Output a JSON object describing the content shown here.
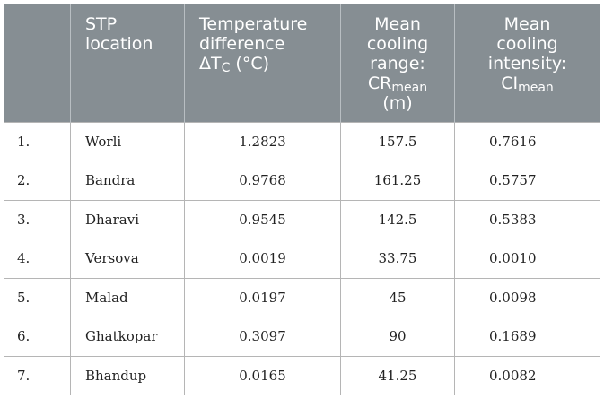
{
  "table": {
    "headers": {
      "col0": "",
      "col1_line1": "STP",
      "col1_line2": "location",
      "col2_line1": "Temperature",
      "col2_line2": "difference",
      "col2_line3_pre": "ΔT",
      "col2_line3_sub": "C",
      "col2_line3_post": " (°C)",
      "col3_line1": "Mean",
      "col3_line2": "cooling",
      "col3_line3": "range:",
      "col3_line4_pre": "CR",
      "col3_line4_sub": "mean",
      "col3_line5": "(m)",
      "col4_line1": "Mean",
      "col4_line2": "cooling",
      "col4_line3": "intensity:",
      "col4_line4_pre": "CI",
      "col4_line4_sub": "mean"
    },
    "rows": [
      {
        "num": "1.",
        "location": "Worli",
        "temp_diff": "1.2823",
        "cooling_range": "157.5",
        "cooling_intensity": "0.7616"
      },
      {
        "num": "2.",
        "location": "Bandra",
        "temp_diff": "0.9768",
        "cooling_range": "161.25",
        "cooling_intensity": "0.5757"
      },
      {
        "num": "3.",
        "location": "Dharavi",
        "temp_diff": "0.9545",
        "cooling_range": "142.5",
        "cooling_intensity": "0.5383"
      },
      {
        "num": "4.",
        "location": "Versova",
        "temp_diff": "0.0019",
        "cooling_range": "33.75",
        "cooling_intensity": "0.0010"
      },
      {
        "num": "5.",
        "location": "Malad",
        "temp_diff": "0.0197",
        "cooling_range": "45",
        "cooling_intensity": "0.0098"
      },
      {
        "num": "6.",
        "location": "Ghatkopar",
        "temp_diff": "0.3097",
        "cooling_range": "90",
        "cooling_intensity": "0.1689"
      },
      {
        "num": "7.",
        "location": "Bhandup",
        "temp_diff": "0.0165",
        "cooling_range": "41.25",
        "cooling_intensity": "0.0082"
      }
    ]
  },
  "colors": {
    "header_bg": "#868e93",
    "header_text": "#ffffff",
    "grid": "#b5b5b5"
  }
}
